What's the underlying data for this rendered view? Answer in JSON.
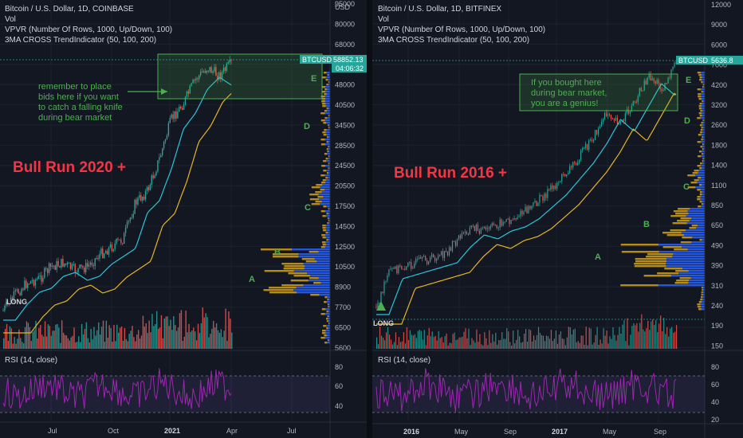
{
  "left": {
    "header": {
      "title": "Bitcoin / U.S. Dollar, 1D, COINBASE",
      "vol": "Vol",
      "vpvr": "VPVR (Number Of Rows, 1000, Up/Down, 100)",
      "ma": "3MA CROSS TrendIndicator (50, 100, 200)"
    },
    "currency": "USD",
    "price_ticks": [
      "95000",
      "80000",
      "68000",
      "58000",
      "48000",
      "40500",
      "34500",
      "28500",
      "24500",
      "20500",
      "17500",
      "14500",
      "12500",
      "10500",
      "8900",
      "7700",
      "6500",
      "5600"
    ],
    "price_badge": "BTCUSD",
    "price_value": "58852.13",
    "countdown": "04:06:32",
    "big_label": "Bull Run 2020 +",
    "annotation": [
      "remember to place",
      "bids here if you want",
      "to catch a falling knife",
      "during bear market"
    ],
    "zones": [
      "A",
      "B",
      "C",
      "D",
      "E"
    ],
    "long_label": "LONG",
    "rsi_label": "RSI (14, close)",
    "rsi_ticks": [
      "80",
      "60",
      "40"
    ],
    "time_labels": [
      "Jul",
      "Oct",
      "2021",
      "Apr",
      "Jul"
    ]
  },
  "right": {
    "header": {
      "title": "Bitcoin / U.S. Dollar, 1D, BITFINEX",
      "vol": "Vol",
      "vpvr": "VPVR (Number Of Rows, 1000, Up/Down, 100)",
      "ma": "3MA CROSS TrendIndicator (50, 100, 200)"
    },
    "price_ticks": [
      "12000",
      "9000",
      "6000",
      "7000",
      "4200",
      "3200",
      "2600",
      "1800",
      "1400",
      "1100",
      "850",
      "650",
      "490",
      "390",
      "310",
      "240",
      "190",
      "150"
    ],
    "price_badge": "BTCUSD",
    "price_value": "5636.8",
    "big_label": "Bull Run 2016 +",
    "annotation": [
      "If you bought here",
      "during bear market,",
      "you are a genius!"
    ],
    "zones": [
      "A",
      "B",
      "C",
      "D",
      "E"
    ],
    "long_label": "LONG",
    "rsi_label": "RSI (14, close)",
    "rsi_ticks": [
      "80",
      "60",
      "40",
      "20"
    ],
    "time_labels": [
      "2016",
      "May",
      "Sep",
      "2017",
      "May",
      "Sep"
    ]
  },
  "colors": {
    "bg": "#131722",
    "up": "#26a69a",
    "down": "#ef5350",
    "annotation_green": "#4caf50",
    "label_red": "#f23645",
    "ma_fast": "#26c6da",
    "ma_slow": "#e6b422",
    "vp_blue": "#2962ff",
    "vp_orange": "#d4a017",
    "rsi": "#9c27b0",
    "price_badge_bg": "#26a69a"
  }
}
